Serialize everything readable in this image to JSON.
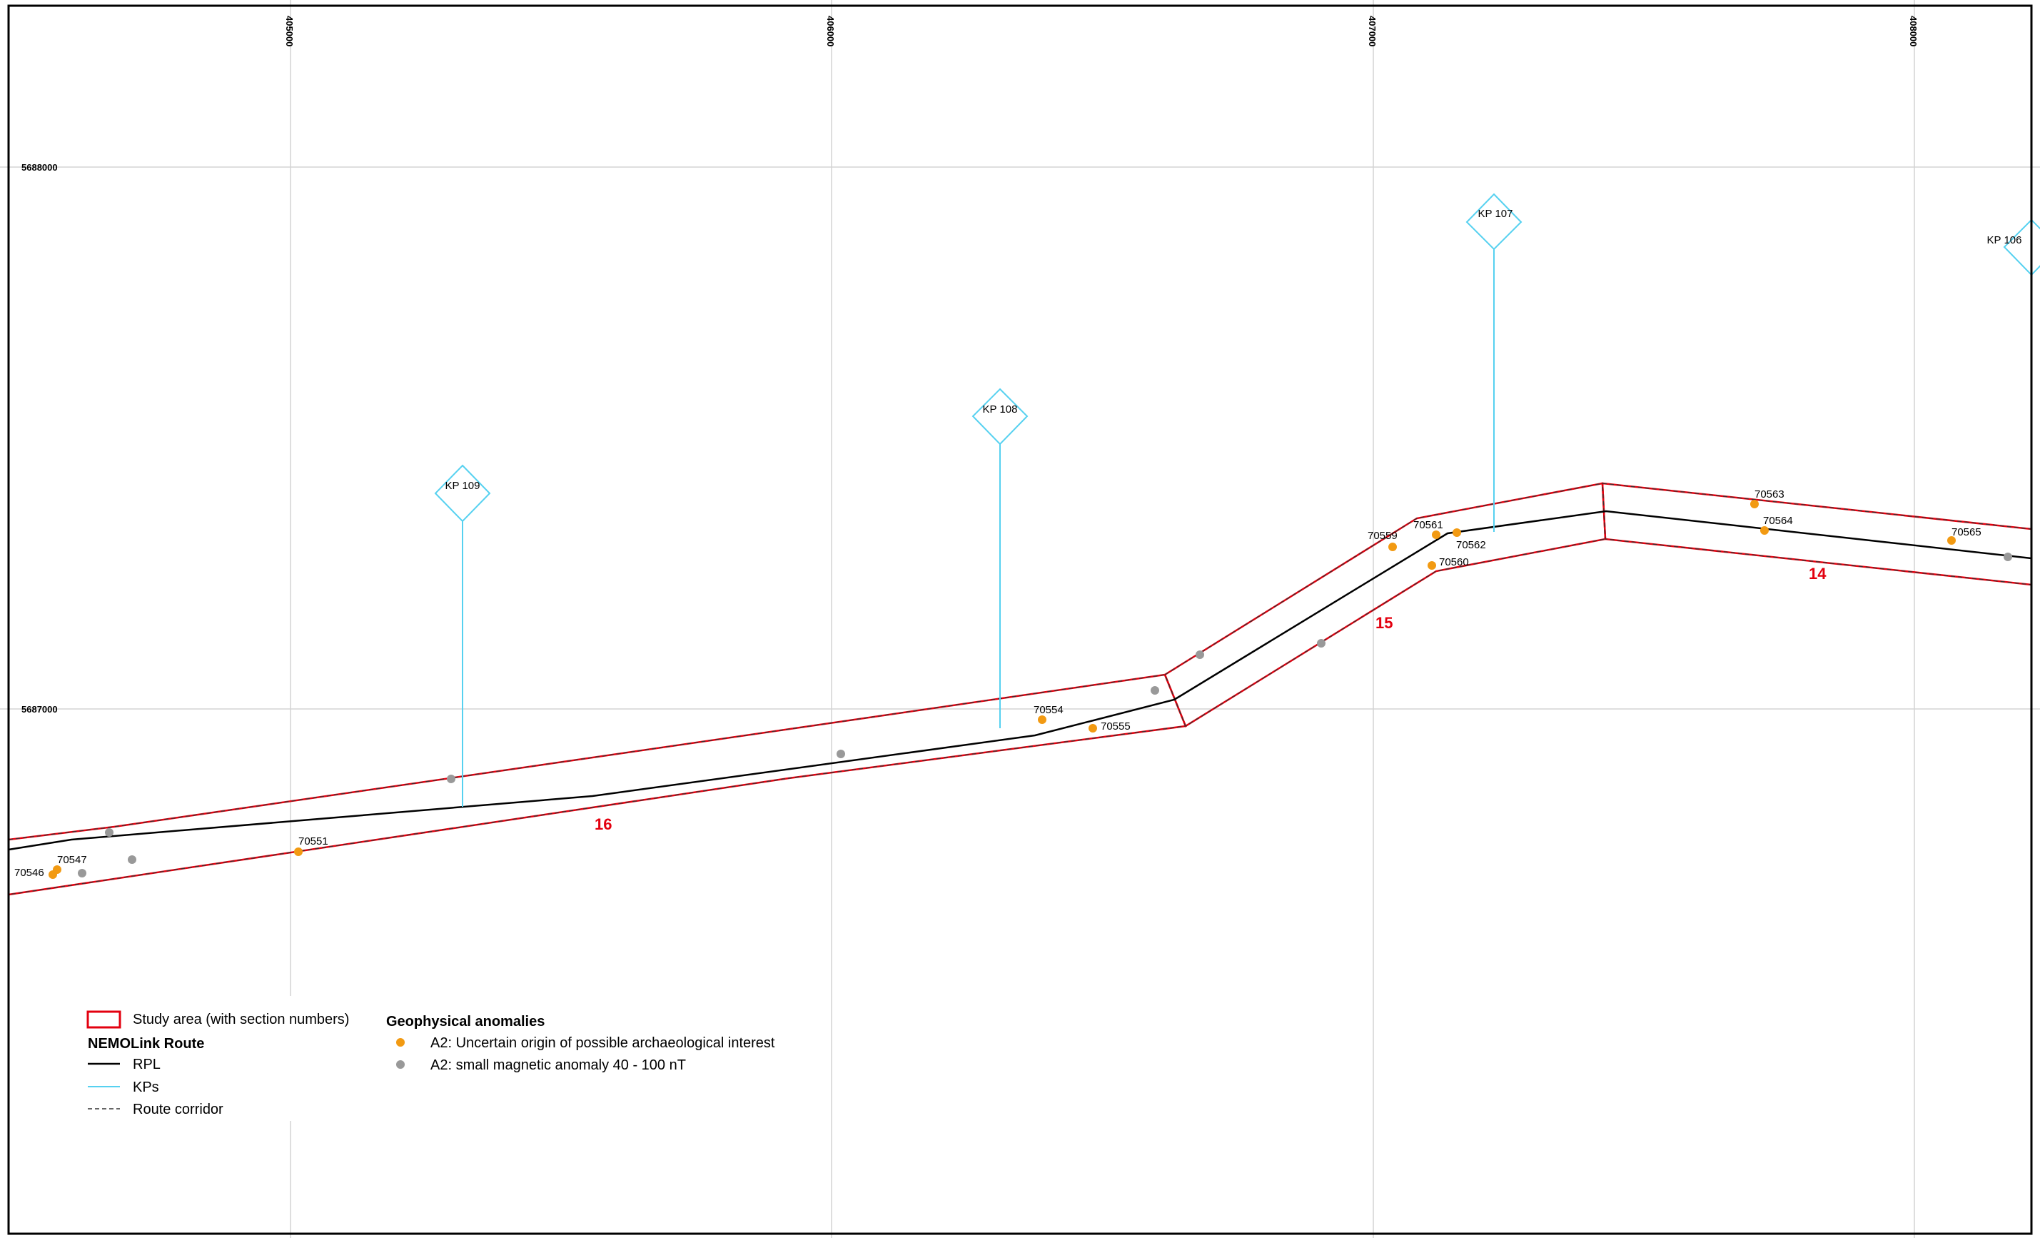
{
  "grid": {
    "eastings": [
      "405000",
      "406000",
      "407000",
      "408000"
    ],
    "northings": [
      "5688000",
      "5687000"
    ]
  },
  "kps": [
    "KP 109",
    "KP 108",
    "KP 107",
    "KP 106"
  ],
  "sections": [
    "16",
    "15",
    "14"
  ],
  "anomalies": {
    "a2_uncertain": [
      "70546",
      "70547",
      "70551",
      "70554",
      "70555",
      "70559",
      "70560",
      "70561",
      "70562",
      "70563",
      "70564",
      "70565"
    ]
  },
  "legend": {
    "study_area": "Study area (with section numbers)",
    "route_title": "NEMOLink Route",
    "rpl": "RPL",
    "kps": "KPs",
    "corridor": "Route corridor",
    "geo_title": "Geophysical anomalies",
    "a2_uncertain": "A2: Uncertain origin of possible archaeological interest",
    "a2_magnetic": "A2: small magnetic anomaly 40 - 100 nT"
  },
  "colors": {
    "study_area": "#e3000f",
    "rpl": "#000000",
    "kp": "#56d1f0",
    "a2_uncertain": "#f29a12",
    "a2_magnetic": "#999999"
  }
}
